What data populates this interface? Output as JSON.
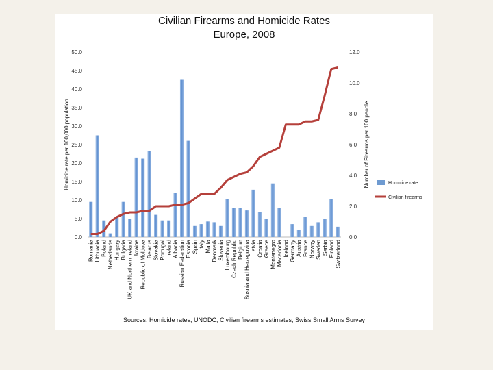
{
  "chart_data": {
    "type": "bar",
    "title": "Civilian Firearms and Homicide Rates",
    "subtitle": "Europe, 2008",
    "source": "Sources: Homicide rates, UNODC; Civilian firearms estimates, Swiss Small Arms Survey",
    "categories": [
      "Romania",
      "Lithuania",
      "Poland",
      "Netherlands",
      "Hungary",
      "Bulgaria",
      "UK and Northern Ireland",
      "Ukraine",
      "Republic of Moldova",
      "Belarus",
      "Slovakia",
      "Portugal",
      "Ireland",
      "Albania",
      "Russian Federation",
      "Estonia",
      "Spain",
      "Italy",
      "Malta",
      "Denmark",
      "Slovenia",
      "Luxembourg",
      "Czech Republic",
      "Belgium",
      "Bosnia and Herzegovina",
      "Latvia",
      "Croatia",
      "Greece",
      "Montenegro",
      "Macedonia",
      "Iceland",
      "Germany",
      "Austria",
      "France",
      "Norway",
      "Sweden",
      "Serbia",
      "Finland",
      "Switzerland"
    ],
    "y_left": {
      "label": "Homicide rate per 100,000 population",
      "ylim": [
        0,
        50
      ],
      "ticks": [
        "0.0",
        "5.0",
        "10.0",
        "15.0",
        "20.0",
        "25.0",
        "30.0",
        "35.0",
        "40.0",
        "45.0",
        "50.0"
      ]
    },
    "y_right": {
      "label": "Number of Firearms per 100 people",
      "ylim": [
        0,
        12
      ],
      "ticks": [
        "0.0",
        "2.0",
        "4.0",
        "6.0",
        "8.0",
        "10.0",
        "12.0"
      ]
    },
    "series": [
      {
        "name": "Homicide rate",
        "type": "bar",
        "axis": "left",
        "color": "#6f9bd1",
        "values": [
          9.5,
          27.5,
          4.5,
          1.0,
          5.5,
          9.5,
          5.0,
          21.5,
          21.2,
          23.3,
          6.0,
          4.5,
          4.5,
          12.0,
          42.5,
          26.0,
          3.0,
          3.5,
          4.2,
          4.0,
          3.0,
          10.2,
          7.8,
          7.8,
          7.2,
          12.8,
          6.8,
          5.0,
          14.5,
          7.8,
          0.0,
          3.5,
          2.0,
          5.5,
          3.0,
          4.0,
          5.0,
          10.3,
          2.8
        ]
      },
      {
        "name": "Civilian firearms",
        "type": "line",
        "axis": "right",
        "color": "#b5403b",
        "values": [
          0.2,
          0.2,
          0.4,
          1.0,
          1.3,
          1.5,
          1.6,
          1.6,
          1.7,
          1.7,
          2.0,
          2.0,
          2.0,
          2.1,
          2.1,
          2.2,
          2.5,
          2.8,
          2.8,
          2.8,
          3.2,
          3.7,
          3.9,
          4.1,
          4.2,
          4.6,
          5.2,
          5.4,
          5.6,
          5.8,
          7.3,
          7.3,
          7.3,
          7.5,
          7.5,
          7.6,
          9.2,
          10.9,
          11.0
        ]
      }
    ],
    "legend": {
      "placement": "right"
    },
    "grid": false
  }
}
